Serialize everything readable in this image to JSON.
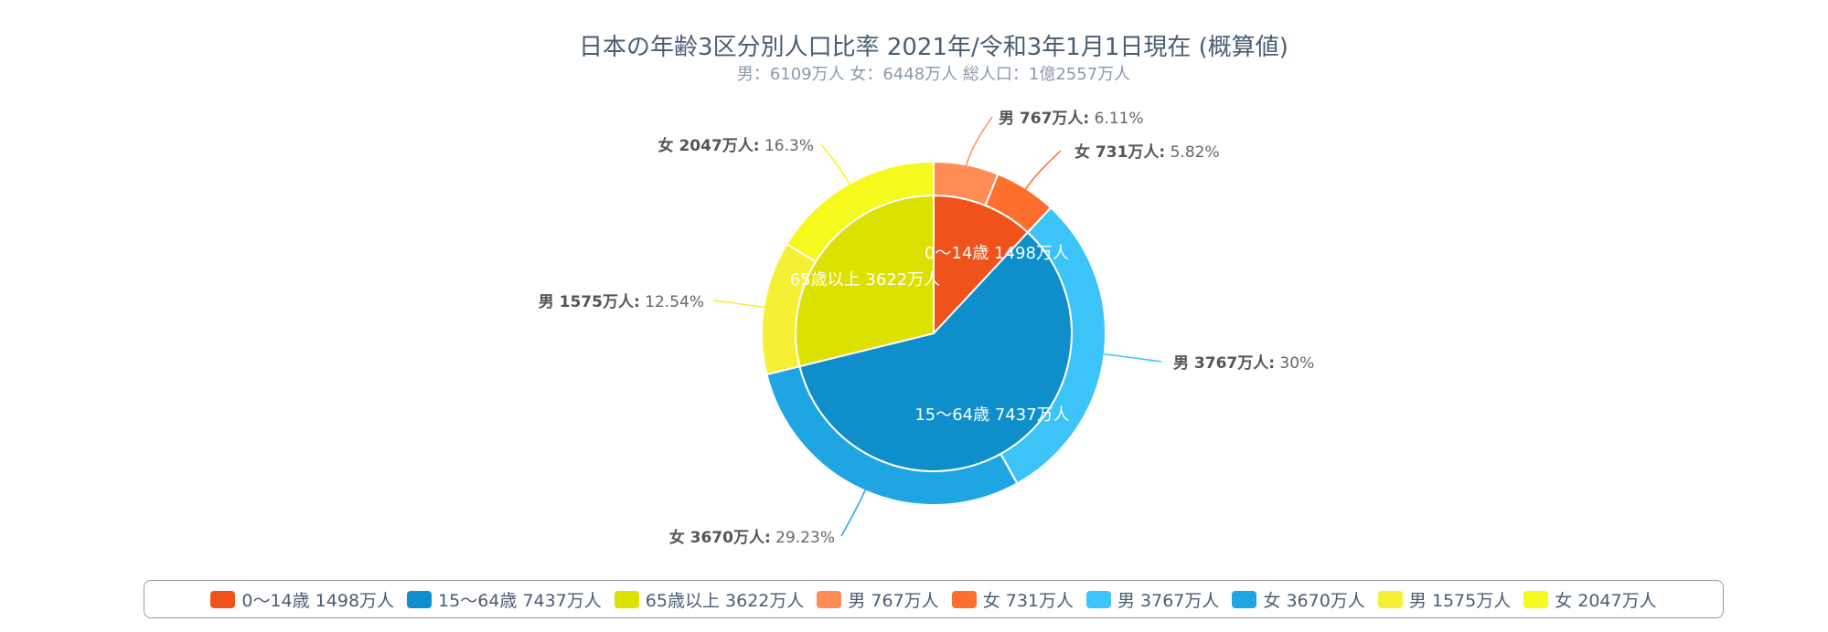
{
  "chart_data": {
    "type": "pie",
    "title": "日本の年齢3区分別人口比率 2021年/令和3年1月1日現在 (概算値)",
    "subtitle": "男：6109万人 女：6448万人 総人口：1億2557万人",
    "inner_series": [
      {
        "label": "0〜14歳 1498万人",
        "value": 1498,
        "color": "#f0521c"
      },
      {
        "label": "15〜64歳 7437万人",
        "value": 7437,
        "color": "#0e8fcb"
      },
      {
        "label": "65歳以上 3622万人",
        "value": 3622,
        "color": "#dde100"
      }
    ],
    "outer_series": [
      {
        "name": "男 767万人:",
        "pct": "6.11%",
        "value": 767,
        "color": "#fe8c54"
      },
      {
        "name": "女 731万人:",
        "pct": "5.82%",
        "value": 731,
        "color": "#fe6e2d"
      },
      {
        "name": "男 3767万人:",
        "pct": "30%",
        "value": 3767,
        "color": "#3cc3f7"
      },
      {
        "name": "女 3670万人:",
        "pct": "29.23%",
        "value": 3670,
        "color": "#1fa6e2"
      },
      {
        "name": "男 1575万人:",
        "pct": "12.54%",
        "value": 1575,
        "color": "#f6ef33"
      },
      {
        "name": "女 2047万人:",
        "pct": "16.3%",
        "value": 2047,
        "color": "#f5f91c"
      }
    ],
    "legend": [
      {
        "label": "0〜14歳 1498万人",
        "color": "#f0521c"
      },
      {
        "label": "15〜64歳 7437万人",
        "color": "#0e8fcb"
      },
      {
        "label": "65歳以上 3622万人",
        "color": "#dde100"
      },
      {
        "label": "男 767万人",
        "color": "#fe8c54"
      },
      {
        "label": "女 731万人",
        "color": "#fe6e2d"
      },
      {
        "label": "男 3767万人",
        "color": "#3cc3f7"
      },
      {
        "label": "女 3670万人",
        "color": "#1fa6e2"
      },
      {
        "label": "男 1575万人",
        "color": "#f6ef33"
      },
      {
        "label": "女 2047万人",
        "color": "#f5f91c"
      }
    ],
    "legend_position": "bottom"
  }
}
